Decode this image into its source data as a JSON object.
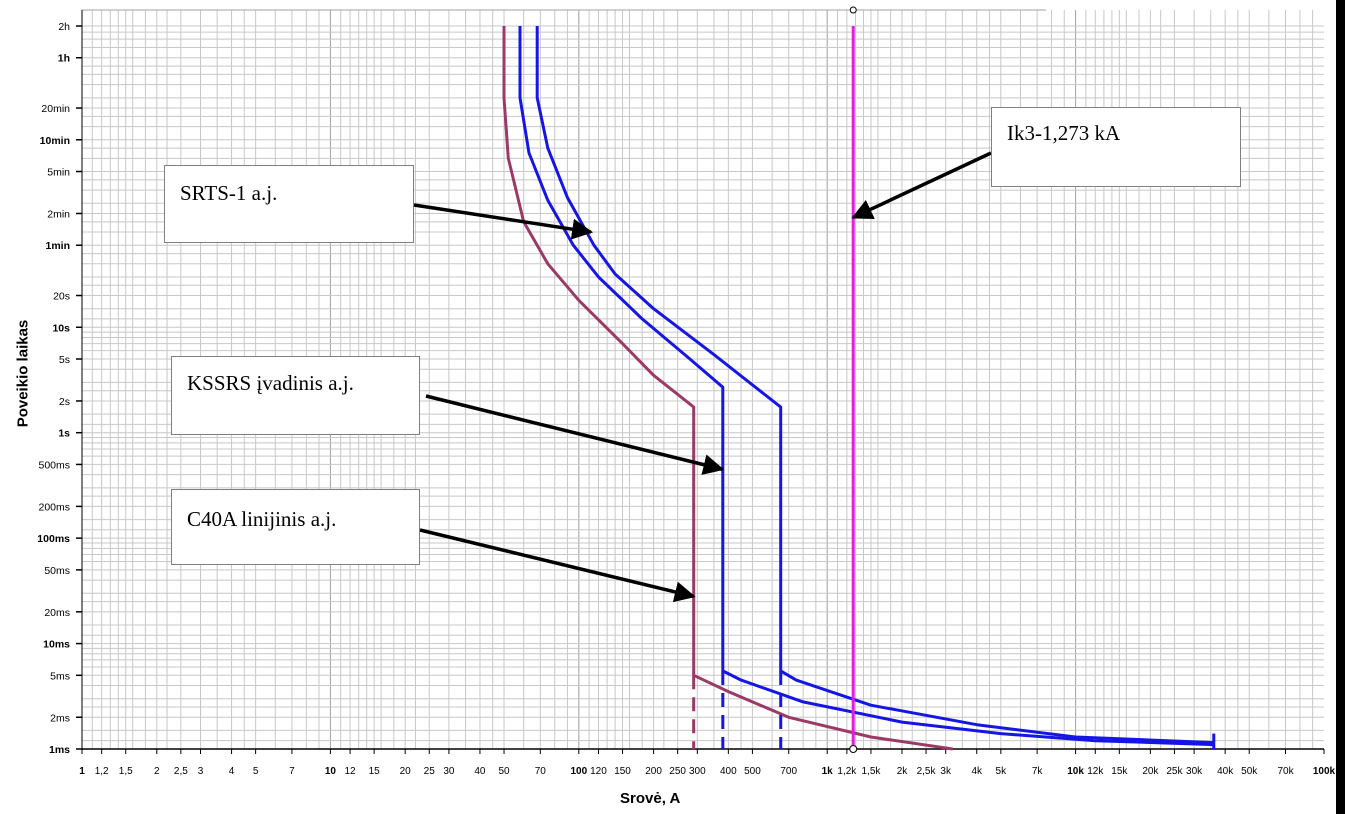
{
  "chart_data": {
    "type": "line",
    "scale": "log-log",
    "xlabel": "Srovė, A",
    "ylabel": "Poveikio laikas",
    "x_ticks": [
      {
        "v": 1,
        "label": "1",
        "bold": true
      },
      {
        "v": 1.2,
        "label": "1,2"
      },
      {
        "v": 1.5,
        "label": "1,5"
      },
      {
        "v": 2,
        "label": "2"
      },
      {
        "v": 2.5,
        "label": "2,5"
      },
      {
        "v": 3,
        "label": "3"
      },
      {
        "v": 4,
        "label": "4"
      },
      {
        "v": 5,
        "label": "5"
      },
      {
        "v": 7,
        "label": "7"
      },
      {
        "v": 10,
        "label": "10",
        "bold": true
      },
      {
        "v": 12,
        "label": "12"
      },
      {
        "v": 15,
        "label": "15"
      },
      {
        "v": 20,
        "label": "20"
      },
      {
        "v": 25,
        "label": "25"
      },
      {
        "v": 30,
        "label": "30"
      },
      {
        "v": 40,
        "label": "40"
      },
      {
        "v": 50,
        "label": "50"
      },
      {
        "v": 70,
        "label": "70"
      },
      {
        "v": 100,
        "label": "100",
        "bold": true
      },
      {
        "v": 120,
        "label": "120"
      },
      {
        "v": 150,
        "label": "150"
      },
      {
        "v": 200,
        "label": "200"
      },
      {
        "v": 250,
        "label": "250"
      },
      {
        "v": 300,
        "label": "300"
      },
      {
        "v": 400,
        "label": "400"
      },
      {
        "v": 500,
        "label": "500"
      },
      {
        "v": 700,
        "label": "700"
      },
      {
        "v": 1000,
        "label": "1k",
        "bold": true
      },
      {
        "v": 1200,
        "label": "1,2k"
      },
      {
        "v": 1500,
        "label": "1,5k"
      },
      {
        "v": 2000,
        "label": "2k"
      },
      {
        "v": 2500,
        "label": "2,5k"
      },
      {
        "v": 3000,
        "label": "3k"
      },
      {
        "v": 4000,
        "label": "4k"
      },
      {
        "v": 5000,
        "label": "5k"
      },
      {
        "v": 7000,
        "label": "7k"
      },
      {
        "v": 10000,
        "label": "10k",
        "bold": true
      },
      {
        "v": 12000,
        "label": "12k"
      },
      {
        "v": 15000,
        "label": "15k"
      },
      {
        "v": 20000,
        "label": "20k"
      },
      {
        "v": 25000,
        "label": "25k"
      },
      {
        "v": 30000,
        "label": "30k"
      },
      {
        "v": 40000,
        "label": "40k"
      },
      {
        "v": 50000,
        "label": "50k"
      },
      {
        "v": 70000,
        "label": "70k"
      },
      {
        "v": 100000,
        "label": "100k",
        "bold": true
      }
    ],
    "y_ticks": [
      {
        "v": 0.001,
        "label": "1ms",
        "bold": true
      },
      {
        "v": 0.002,
        "label": "2ms"
      },
      {
        "v": 0.005,
        "label": "5ms"
      },
      {
        "v": 0.01,
        "label": "10ms",
        "bold": true
      },
      {
        "v": 0.02,
        "label": "20ms"
      },
      {
        "v": 0.05,
        "label": "50ms"
      },
      {
        "v": 0.1,
        "label": "100ms",
        "bold": true
      },
      {
        "v": 0.2,
        "label": "200ms"
      },
      {
        "v": 0.5,
        "label": "500ms"
      },
      {
        "v": 1,
        "label": "1s",
        "bold": true
      },
      {
        "v": 2,
        "label": "2s"
      },
      {
        "v": 5,
        "label": "5s"
      },
      {
        "v": 10,
        "label": "10s",
        "bold": true
      },
      {
        "v": 20,
        "label": "20s"
      },
      {
        "v": 60,
        "label": "1min",
        "bold": true
      },
      {
        "v": 120,
        "label": "2min"
      },
      {
        "v": 300,
        "label": "5min"
      },
      {
        "v": 600,
        "label": "10min",
        "bold": true
      },
      {
        "v": 1200,
        "label": "20min"
      },
      {
        "v": 3600,
        "label": "1h",
        "bold": true
      },
      {
        "v": 7200,
        "label": "2h"
      }
    ],
    "series": [
      {
        "color": "#9b3a66",
        "points": [
          [
            50,
            7200
          ],
          [
            50,
            1500
          ],
          [
            52,
            400
          ],
          [
            60,
            100
          ],
          [
            75,
            40
          ],
          [
            100,
            18
          ],
          [
            150,
            7
          ],
          [
            200,
            3.5
          ],
          [
            290,
            1.75
          ],
          [
            290,
            0.005
          ],
          [
            400,
            0.0035
          ],
          [
            700,
            0.002
          ],
          [
            1500,
            0.0013
          ],
          [
            3200,
            0.001
          ]
        ],
        "dashed_drop": [
          [
            290,
            0.005
          ],
          [
            290,
            0.001
          ]
        ]
      },
      {
        "color": "#1515e6",
        "points": [
          [
            58,
            7200
          ],
          [
            58,
            1500
          ],
          [
            63,
            450
          ],
          [
            75,
            160
          ],
          [
            95,
            60
          ],
          [
            120,
            30
          ],
          [
            180,
            12
          ],
          [
            280,
            5
          ],
          [
            380,
            2.7
          ],
          [
            380,
            0.0055
          ],
          [
            450,
            0.0045
          ],
          [
            800,
            0.0028
          ],
          [
            2000,
            0.0018
          ],
          [
            5000,
            0.0014
          ],
          [
            12000,
            0.0012
          ],
          [
            36000,
            0.0011
          ]
        ],
        "dashed_drop": [
          [
            380,
            0.0055
          ],
          [
            380,
            0.001
          ]
        ]
      },
      {
        "color": "#1515e6",
        "points": [
          [
            68,
            7200
          ],
          [
            68,
            1500
          ],
          [
            75,
            500
          ],
          [
            90,
            170
          ],
          [
            115,
            60
          ],
          [
            140,
            32
          ],
          [
            200,
            15
          ],
          [
            350,
            5.5
          ],
          [
            650,
            1.75
          ],
          [
            650,
            0.0055
          ],
          [
            750,
            0.0045
          ],
          [
            1500,
            0.0026
          ],
          [
            4000,
            0.0017
          ],
          [
            10000,
            0.0013
          ],
          [
            36000,
            0.00115
          ]
        ],
        "dashed_drop": [
          [
            650,
            0.0055
          ],
          [
            650,
            0.001
          ]
        ]
      },
      {
        "color": "#e31ce3",
        "vertical_at": 1273,
        "points": [
          [
            1273,
            7200
          ],
          [
            1273,
            0.001
          ]
        ]
      }
    ],
    "annotations": [
      {
        "id": "srts",
        "text": "SRTS-1 a.j.",
        "arrow_to": [
          112,
          80
        ]
      },
      {
        "id": "kssrs",
        "text": "KSSRS įvadinis a.j.",
        "arrow_to": [
          378,
          0.45
        ]
      },
      {
        "id": "c40a",
        "text": "C40A linijinis a.j.",
        "arrow_to": [
          290,
          0.028
        ]
      },
      {
        "id": "ik3",
        "text": "Ik3-1,273 kA",
        "arrow_to": [
          1273,
          110
        ]
      }
    ]
  },
  "callouts": {
    "srts": "SRTS-1 a.j.",
    "kssrs": "KSSRS įvadinis a.j.",
    "c40a": "C40A linijinis a.j.",
    "ik3": "Ik3-1,273 kA"
  }
}
